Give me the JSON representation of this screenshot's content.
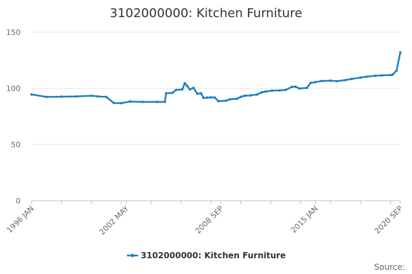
{
  "chart_data": {
    "type": "line",
    "title": "3102000000: Kitchen Furniture",
    "xlabel": "",
    "ylabel": "",
    "source_label": "Source:",
    "ylim": [
      0,
      150
    ],
    "y_ticks": [
      0,
      50,
      100,
      150
    ],
    "x_tick_labels": [
      "1996 JAN",
      "2002 MAY",
      "2008 SEP",
      "2015 JAN",
      "2020 SEP"
    ],
    "x_tick_indices": [
      0,
      76,
      152,
      228,
      296
    ],
    "x_start": "1996-01",
    "x_end": "2020-09",
    "legend_position": "bottom",
    "grid": "horizontal",
    "series": [
      {
        "name": "3102000000: Kitchen Furniture",
        "color": "#1f7fbf",
        "points": [
          [
            "1996-01",
            94.6
          ],
          [
            "1997-01",
            92.4
          ],
          [
            "1998-01",
            92.6
          ],
          [
            "1999-01",
            92.8
          ],
          [
            "2000-01",
            93.4
          ],
          [
            "2000-06",
            92.8
          ],
          [
            "2001-01",
            92.4
          ],
          [
            "2001-07",
            87.0
          ],
          [
            "2002-01",
            86.8
          ],
          [
            "2002-08",
            88.3
          ],
          [
            "2003-06",
            88.0
          ],
          [
            "2004-06",
            88.0
          ],
          [
            "2004-12",
            88.0
          ],
          [
            "2005-01",
            95.6
          ],
          [
            "2005-06",
            96.0
          ],
          [
            "2005-09",
            98.6
          ],
          [
            "2006-02",
            99.0
          ],
          [
            "2006-04",
            104.5
          ],
          [
            "2006-06",
            102.0
          ],
          [
            "2006-08",
            99.0
          ],
          [
            "2006-11",
            100.4
          ],
          [
            "2007-02",
            95.3
          ],
          [
            "2007-05",
            95.6
          ],
          [
            "2007-07",
            91.6
          ],
          [
            "2007-10",
            91.7
          ],
          [
            "2008-01",
            92.0
          ],
          [
            "2008-04",
            91.8
          ],
          [
            "2008-07",
            88.6
          ],
          [
            "2009-01",
            89.0
          ],
          [
            "2009-04",
            90.2
          ],
          [
            "2009-10",
            90.8
          ],
          [
            "2010-01",
            92.5
          ],
          [
            "2010-04",
            93.4
          ],
          [
            "2010-09",
            93.8
          ],
          [
            "2011-02",
            94.6
          ],
          [
            "2011-06",
            96.5
          ],
          [
            "2011-09",
            97.2
          ],
          [
            "2012-02",
            98.0
          ],
          [
            "2012-08",
            98.2
          ],
          [
            "2013-01",
            98.6
          ],
          [
            "2013-06",
            101.4
          ],
          [
            "2013-09",
            101.4
          ],
          [
            "2013-12",
            99.8
          ],
          [
            "2014-06",
            100.4
          ],
          [
            "2014-09",
            104.8
          ],
          [
            "2015-01",
            105.6
          ],
          [
            "2015-06",
            106.6
          ],
          [
            "2016-01",
            106.8
          ],
          [
            "2016-06",
            106.4
          ],
          [
            "2017-01",
            107.4
          ],
          [
            "2017-06",
            108.4
          ],
          [
            "2018-01",
            109.6
          ],
          [
            "2018-06",
            110.4
          ],
          [
            "2019-01",
            111.2
          ],
          [
            "2019-06",
            111.6
          ],
          [
            "2020-01",
            111.8
          ],
          [
            "2020-03",
            112.4
          ],
          [
            "2020-06",
            116.0
          ],
          [
            "2020-09",
            132.0
          ]
        ]
      }
    ]
  }
}
